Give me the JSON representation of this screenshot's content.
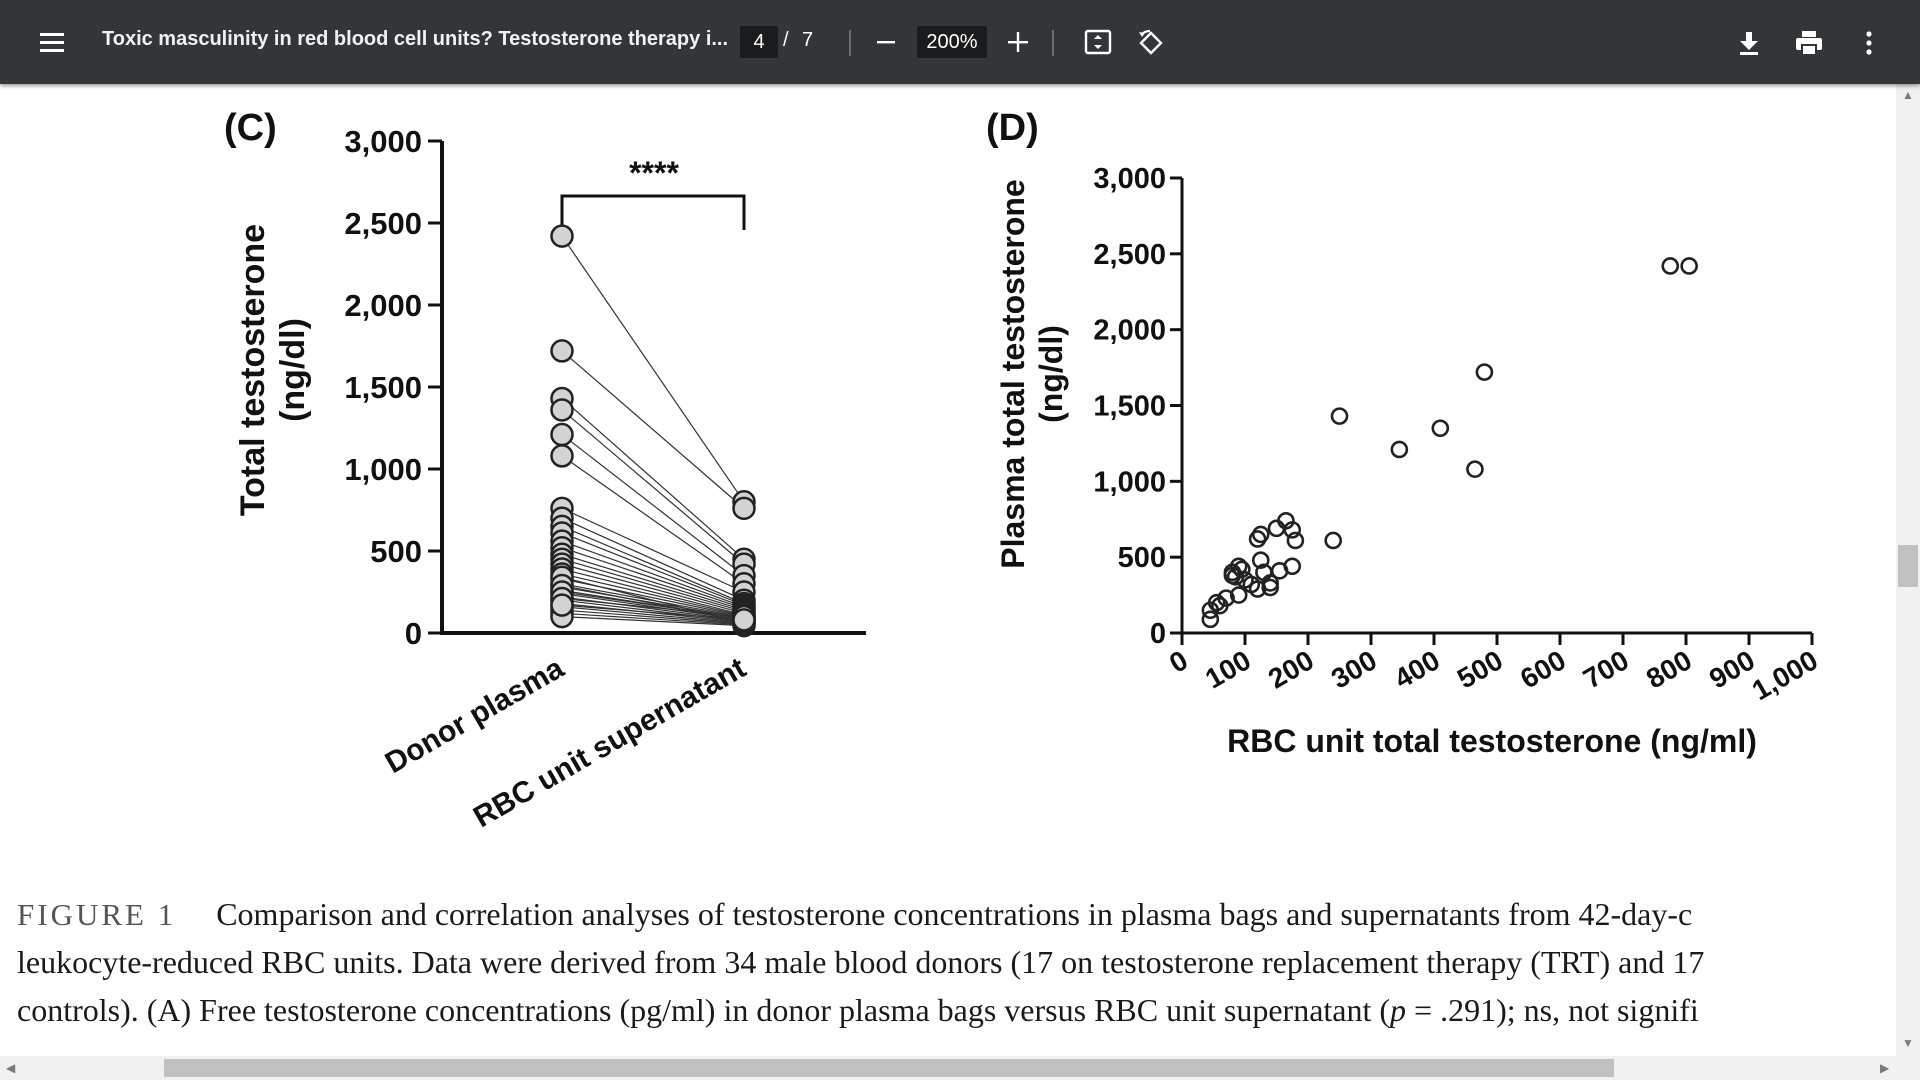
{
  "toolbar": {
    "title": "Toxic masculinity in red blood cell units? Testosterone therapy i...",
    "current_page": "4",
    "page_separator": "/",
    "total_pages": "7",
    "zoom": "200%",
    "icons": [
      "menu-icon",
      "zoom-out-icon",
      "zoom-in-icon",
      "fit-page-icon",
      "rotate-icon",
      "download-icon",
      "print-icon",
      "more-icon"
    ]
  },
  "panel_c": {
    "label": "(C)",
    "ylabel_line1": "Total testosterone",
    "ylabel_line2": "(ng/dl)",
    "yticks": [
      "3,000",
      "2,500",
      "2,000",
      "1,500",
      "1,000",
      "500",
      "0"
    ],
    "xcategories": [
      "Donor plasma",
      "RBC unit supernatant"
    ],
    "significance": "****"
  },
  "panel_d": {
    "label": "(D)",
    "ylabel_line1": "Plasma total testosterone",
    "ylabel_line2": "(ng/dl)",
    "yticks": [
      "3,000",
      "2,500",
      "2,000",
      "1,500",
      "1,000",
      "500",
      "0"
    ],
    "xticks": [
      "0",
      "100",
      "200",
      "300",
      "400",
      "500",
      "600",
      "700",
      "800",
      "900",
      "1,000"
    ],
    "xlabel": "RBC unit total testosterone (ng/ml)"
  },
  "chart_data": [
    {
      "type": "scatter",
      "panel": "C",
      "categories": [
        "Donor plasma",
        "RBC unit supernatant"
      ],
      "ylim": [
        0,
        3000
      ],
      "paired": [
        [
          2420,
          800
        ],
        [
          1720,
          760
        ],
        [
          1430,
          450
        ],
        [
          1360,
          420
        ],
        [
          1210,
          350
        ],
        [
          1080,
          300
        ],
        [
          760,
          250
        ],
        [
          700,
          200
        ],
        [
          650,
          180
        ],
        [
          610,
          170
        ],
        [
          560,
          160
        ],
        [
          520,
          150
        ],
        [
          480,
          140
        ],
        [
          450,
          130
        ],
        [
          420,
          120
        ],
        [
          390,
          110
        ],
        [
          360,
          105
        ],
        [
          330,
          100
        ],
        [
          300,
          95
        ],
        [
          280,
          90
        ],
        [
          260,
          85
        ],
        [
          240,
          80
        ],
        [
          220,
          75
        ],
        [
          200,
          70
        ],
        [
          180,
          65
        ],
        [
          160,
          60
        ],
        [
          140,
          55
        ],
        [
          120,
          50
        ],
        [
          100,
          45
        ],
        [
          340,
          60
        ],
        [
          290,
          70
        ],
        [
          250,
          90
        ],
        [
          210,
          100
        ],
        [
          170,
          80
        ]
      ]
    },
    {
      "type": "scatter",
      "panel": "D",
      "xlim": [
        0,
        1000
      ],
      "ylim": [
        0,
        3000
      ],
      "points": [
        [
          775,
          2420
        ],
        [
          805,
          2420
        ],
        [
          480,
          1720
        ],
        [
          250,
          1430
        ],
        [
          410,
          1350
        ],
        [
          345,
          1210
        ],
        [
          465,
          1080
        ],
        [
          165,
          740
        ],
        [
          125,
          650
        ],
        [
          120,
          620
        ],
        [
          175,
          680
        ],
        [
          180,
          610
        ],
        [
          150,
          690
        ],
        [
          240,
          610
        ],
        [
          90,
          440
        ],
        [
          95,
          420
        ],
        [
          80,
          400
        ],
        [
          85,
          370
        ],
        [
          100,
          350
        ],
        [
          110,
          320
        ],
        [
          125,
          480
        ],
        [
          130,
          400
        ],
        [
          140,
          300
        ],
        [
          155,
          410
        ],
        [
          175,
          440
        ],
        [
          90,
          250
        ],
        [
          70,
          230
        ],
        [
          55,
          200
        ],
        [
          60,
          180
        ],
        [
          45,
          150
        ],
        [
          45,
          90
        ],
        [
          120,
          290
        ],
        [
          140,
          330
        ],
        [
          80,
          380
        ]
      ]
    }
  ],
  "caption": {
    "fig_label": "FIGURE 1",
    "line1": "Comparison and correlation analyses of testosterone concentrations in plasma bags and supernatants from 42-day-c",
    "line2": "leukocyte-reduced RBC units. Data were derived from 34 male blood donors (17 on testosterone replacement therapy (TRT) and 17",
    "line3_a": "controls). (A) Free testosterone concentrations (pg/ml) in donor plasma bags versus RBC unit supernatant (",
    "line3_p": "p",
    "line3_b": " = .291); ns, not signifi"
  }
}
